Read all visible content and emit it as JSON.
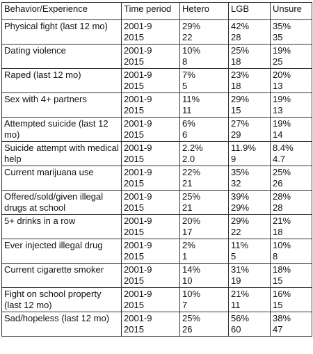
{
  "table": {
    "header": [
      "Behavior/Experience",
      "Time period",
      "Hetero",
      "LGB",
      "Unsure"
    ],
    "rows": [
      {
        "behavior": "Physical fight (last 12 mo)",
        "periods": [
          "2001-9",
          "2015"
        ],
        "hetero": [
          "29%",
          "22"
        ],
        "lgb": [
          "42%",
          "28"
        ],
        "unsure": [
          "35%",
          "35"
        ]
      },
      {
        "behavior": "Dating violence",
        "periods": [
          "2001-9",
          "2015"
        ],
        "hetero": [
          "10%",
          "8"
        ],
        "lgb": [
          "25%",
          "18"
        ],
        "unsure": [
          "19%",
          "25"
        ]
      },
      {
        "behavior": "Raped (last 12 mo)",
        "periods": [
          "2001-9",
          "2015"
        ],
        "hetero": [
          "7%",
          "5"
        ],
        "lgb": [
          "23%",
          "18"
        ],
        "unsure": [
          "20%",
          "13"
        ]
      },
      {
        "behavior": "Sex with 4+ partners",
        "periods": [
          "2001-9",
          "2015"
        ],
        "hetero": [
          "11%",
          "11"
        ],
        "lgb": [
          "29%",
          "15"
        ],
        "unsure": [
          "19%",
          "13"
        ]
      },
      {
        "behavior": "Attempted suicide (last 12 mo)",
        "periods": [
          "2001-9",
          "2015"
        ],
        "hetero": [
          "6%",
          "6"
        ],
        "lgb": [
          "27%",
          "29"
        ],
        "unsure": [
          "19%",
          "14"
        ]
      },
      {
        "behavior": "Suicide attempt with medical help",
        "periods": [
          "2001-9",
          "2015"
        ],
        "hetero": [
          "2.2%",
          "2.0"
        ],
        "lgb": [
          "11.9%",
          "9"
        ],
        "unsure": [
          "8.4%",
          "4.7"
        ]
      },
      {
        "behavior": "Current marijuana use",
        "periods": [
          "2001-9",
          "2015"
        ],
        "hetero": [
          "22%",
          "21"
        ],
        "lgb": [
          "35%",
          "32"
        ],
        "unsure": [
          "25%",
          "26"
        ]
      },
      {
        "behavior": "Offered/sold/given illegal drugs at school",
        "periods": [
          "2001-9",
          "2015"
        ],
        "hetero": [
          "25%",
          "21"
        ],
        "lgb": [
          "39%",
          "29%"
        ],
        "unsure": [
          "28%",
          "28"
        ]
      },
      {
        "behavior": "5+ drinks in a row",
        "periods": [
          "2001-9",
          "2015"
        ],
        "hetero": [
          "20%",
          "17"
        ],
        "lgb": [
          "29%",
          "22"
        ],
        "unsure": [
          "21%",
          "18"
        ]
      },
      {
        "behavior": "Ever injected illegal drug",
        "periods": [
          "2001-9",
          "2015"
        ],
        "hetero": [
          "2%",
          "1"
        ],
        "lgb": [
          "11%",
          "5"
        ],
        "unsure": [
          "10%",
          "8"
        ]
      },
      {
        "behavior": "Current cigarette smoker",
        "periods": [
          "2001-9",
          "2015"
        ],
        "hetero": [
          "14%",
          "10"
        ],
        "lgb": [
          "31%",
          "19"
        ],
        "unsure": [
          "18%",
          "15"
        ]
      },
      {
        "behavior": "Fight on school property (last 12 mo)",
        "periods": [
          "2001-9",
          "2015"
        ],
        "hetero": [
          "10%",
          "7"
        ],
        "lgb": [
          "21%",
          "11"
        ],
        "unsure": [
          "16%",
          "15"
        ]
      },
      {
        "behavior": "Sad/hopeless (last 12 mo)",
        "periods": [
          "2001-9",
          "2015"
        ],
        "hetero": [
          "25%",
          "26"
        ],
        "lgb": [
          "56%",
          "60"
        ],
        "unsure": [
          "38%",
          "47"
        ]
      }
    ]
  }
}
